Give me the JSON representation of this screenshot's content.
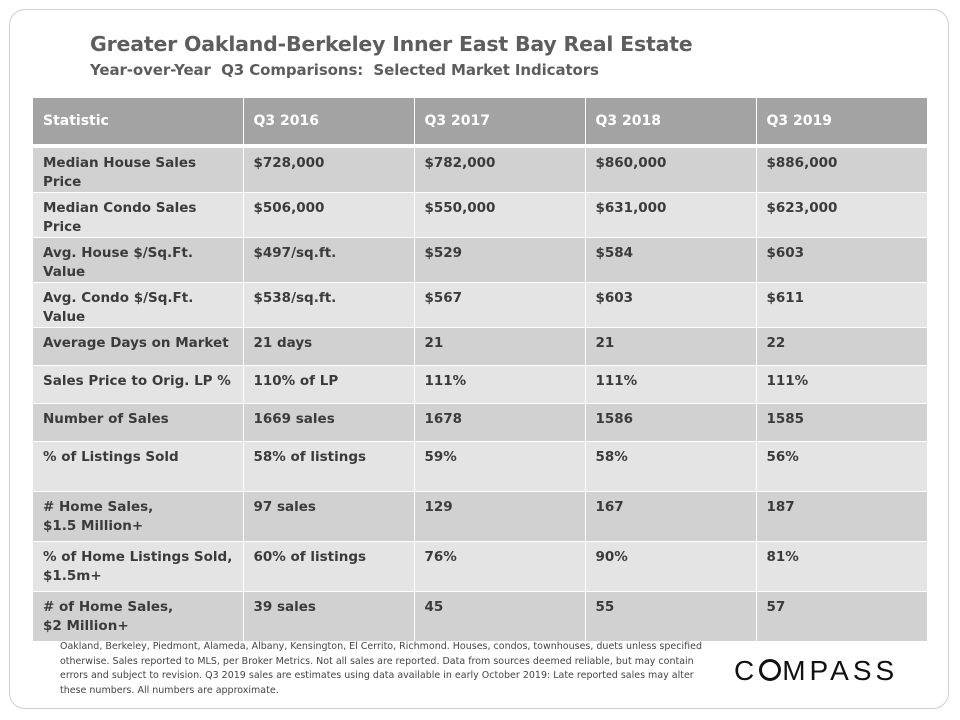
{
  "title": "Greater Oakland-Berkeley Inner East Bay Real Estate",
  "subtitle": "Year-over-Year  Q3 Comparisons:  Selected Market Indicators",
  "table": {
    "headers": [
      "Statistic",
      "Q3 2016",
      "Q3 2017",
      "Q3 2018",
      "Q3 2019"
    ],
    "rows": [
      {
        "label": "Median House Sales Price",
        "values": [
          "$728,000",
          "$782,000",
          "$860,000",
          "$886,000"
        ]
      },
      {
        "label": "Median Condo Sales Price",
        "values": [
          "$506,000",
          "$550,000",
          "$631,000",
          "$623,000"
        ]
      },
      {
        "label": "Avg. House $/Sq.Ft. Value",
        "values": [
          "$497/sq.ft.",
          "$529",
          "$584",
          "$603"
        ]
      },
      {
        "label": "Avg. Condo $/Sq.Ft. Value",
        "values": [
          "$538/sq.ft.",
          "$567",
          "$603",
          "$611"
        ]
      },
      {
        "label": "Average Days on Market",
        "values": [
          "21 days",
          "21",
          "21",
          "22"
        ]
      },
      {
        "label": "Sales Price to Orig. LP %",
        "values": [
          "110% of LP",
          "111%",
          "111%",
          "111%"
        ]
      },
      {
        "label": "Number of Sales",
        "values": [
          "1669 sales",
          "1678",
          "1586",
          "1585"
        ]
      },
      {
        "label": "% of Listings Sold",
        "values": [
          "58% of listings",
          "59%",
          "58%",
          "56%"
        ]
      },
      {
        "label": "# Home Sales,",
        "label2": "$1.5 Million+",
        "values": [
          "97 sales",
          "129",
          "167",
          "187"
        ]
      },
      {
        "label": "% of Home Listings Sold,",
        "label2": "$1.5m+",
        "values": [
          "60% of listings",
          "76%",
          "90%",
          "81%"
        ]
      },
      {
        "label": "# of Home Sales,",
        "label2": "$2 Million+",
        "values": [
          "39 sales",
          "45",
          "55",
          "57"
        ]
      }
    ]
  },
  "footnote": "Oakland, Berkeley, Piedmont, Alameda, Albany, Kensington, El Cerrito, Richmond. Houses, condos, townhouses, duets unless specified otherwise. Sales reported to MLS, per Broker Metrics. Not all sales are reported. Data from sources deemed reliable, but may contain errors and subject to revision. Q3 2019 sales are estimates using data available in early October 2019: Late reported sales may alter these numbers. All numbers are approximate.",
  "logo": {
    "pre": "C",
    "post": "MPASS",
    "text": "COMPASS"
  }
}
